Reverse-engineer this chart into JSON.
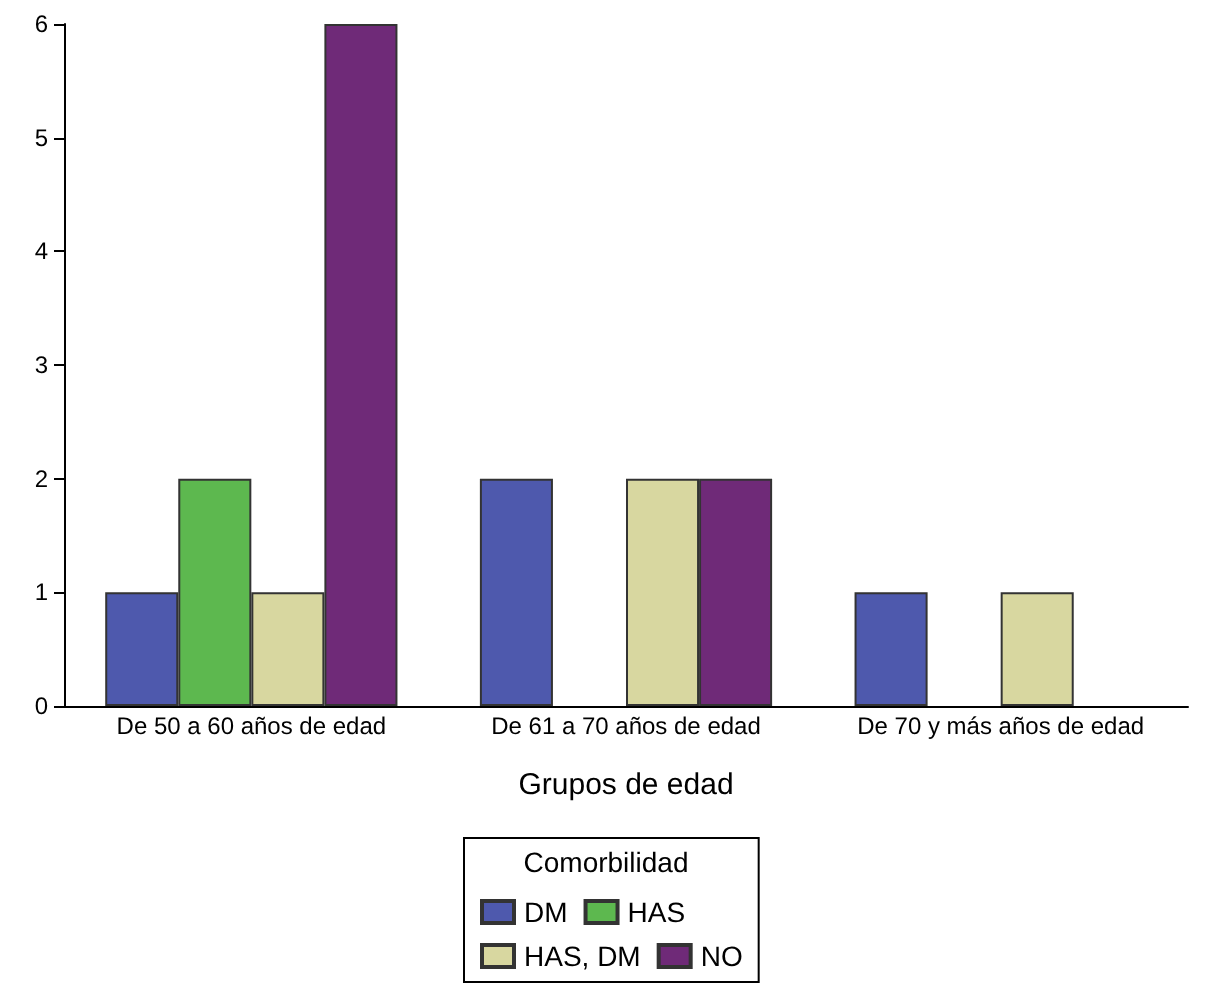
{
  "chart_data": {
    "type": "bar",
    "xlabel": "Grupos de edad",
    "legend_title": "Comorbilidad",
    "categories": [
      "De 50 a 60 años de edad",
      "De 61 a 70 años de edad",
      "De 70 y más años de edad"
    ],
    "series": [
      {
        "name": "DM",
        "color": "#4e59ad",
        "values": [
          1,
          2,
          1
        ]
      },
      {
        "name": "HAS",
        "color": "#5db84f",
        "values": [
          2,
          null,
          null
        ]
      },
      {
        "name": "HAS, DM",
        "color": "#d8d7a0",
        "values": [
          1,
          2,
          1
        ]
      },
      {
        "name": "NO",
        "color": "#6f2a78",
        "values": [
          6,
          2,
          null
        ]
      }
    ],
    "ylim": [
      0,
      6
    ],
    "yticks": [
      0,
      1,
      2,
      3,
      4,
      5,
      6
    ],
    "grid": false,
    "legend": "bottom"
  }
}
